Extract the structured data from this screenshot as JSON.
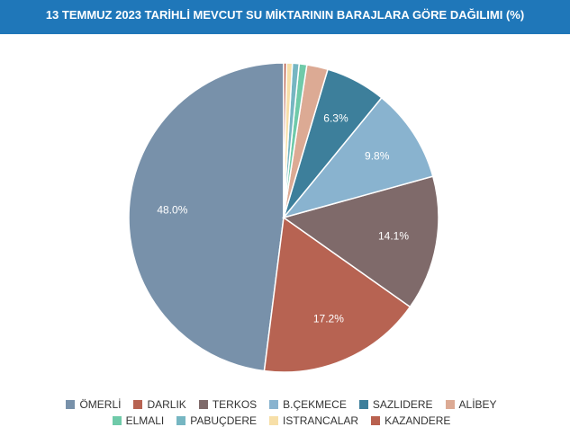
{
  "chart_data": {
    "type": "pie",
    "title": "13 TEMMUZ 2023 TARİHLİ MEVCUT SU MİKTARININ BARAJLARA GÖRE DAĞILIMI (%)",
    "categories": [
      "ÖMERLİ",
      "DARLIK",
      "TERKOS",
      "B.ÇEKMECE",
      "SAZLIDERE",
      "ALİBEY",
      "ELMALI",
      "PABUÇDERE",
      "ISTRANCALAR",
      "KAZANDERE"
    ],
    "values": [
      48.0,
      17.2,
      14.1,
      9.8,
      6.3,
      2.2,
      0.8,
      0.7,
      0.6,
      0.3
    ],
    "value_labels": [
      "48.0%",
      "17.2%",
      "14.1%",
      "9.8%",
      "6.3%",
      null,
      null,
      null,
      null,
      null
    ],
    "colors": [
      "#7891aa",
      "#b76352",
      "#7f6a6a",
      "#89b3cf",
      "#3d7f9b",
      "#dcaa94",
      "#6fcaa9",
      "#76b6c2",
      "#f7dfa8",
      "#b9614f"
    ]
  }
}
